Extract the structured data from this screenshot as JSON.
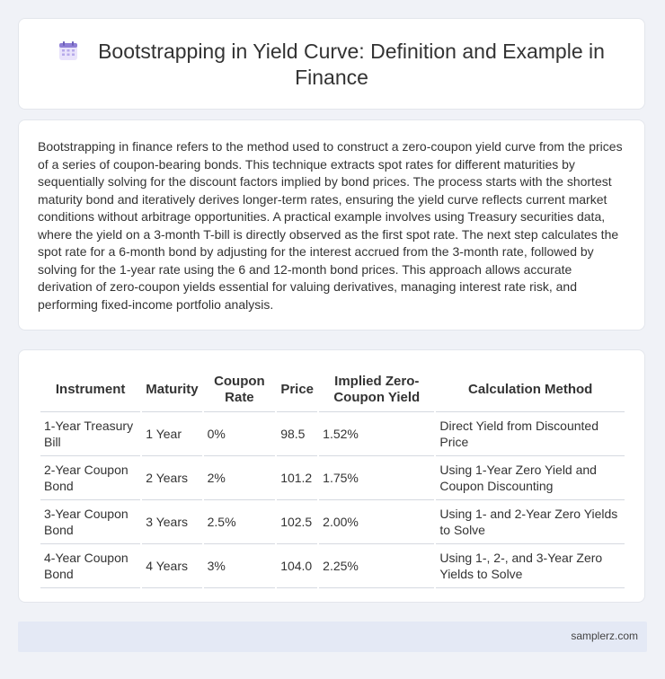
{
  "header": {
    "title": "Bootstrapping in Yield Curve: Definition and Example in Finance",
    "icon": "calendar-icon"
  },
  "intro": {
    "text": "Bootstrapping in finance refers to the method used to construct a zero-coupon yield curve from the prices of a series of coupon-bearing bonds. This technique extracts spot rates for different maturities by sequentially solving for the discount factors implied by bond prices. The process starts with the shortest maturity bond and iteratively derives longer-term rates, ensuring the yield curve reflects current market conditions without arbitrage opportunities. A practical example involves using Treasury securities data, where the yield on a 3-month T-bill is directly observed as the first spot rate. The next step calculates the spot rate for a 6-month bond by adjusting for the interest accrued from the 3-month rate, followed by solving for the 1-year rate using the 6 and 12-month bond prices. This approach allows accurate derivation of zero-coupon yields essential for valuing derivatives, managing interest rate risk, and performing fixed-income portfolio analysis."
  },
  "table": {
    "headers": [
      "Instrument",
      "Maturity",
      "Coupon Rate",
      "Price",
      "Implied Zero-Coupon Yield",
      "Calculation Method"
    ],
    "rows": [
      [
        "1-Year Treasury Bill",
        "1 Year",
        "0%",
        "98.5",
        "1.52%",
        "Direct Yield from Discounted Price"
      ],
      [
        "2-Year Coupon Bond",
        "2 Years",
        "2%",
        "101.2",
        "1.75%",
        "Using 1-Year Zero Yield and Coupon Discounting"
      ],
      [
        "3-Year Coupon Bond",
        "3 Years",
        "2.5%",
        "102.5",
        "2.00%",
        "Using 1- and 2-Year Zero Yields to Solve"
      ],
      [
        "4-Year Coupon Bond",
        "4 Years",
        "3%",
        "104.0",
        "2.25%",
        "Using 1-, 2-, and 3-Year Zero Yields to Solve"
      ]
    ]
  },
  "footer": {
    "site": "samplerz.com"
  },
  "colors": {
    "background": "#f0f2f7",
    "footer_bg": "#e4e9f5",
    "icon_accent": "#8f7fd6"
  }
}
